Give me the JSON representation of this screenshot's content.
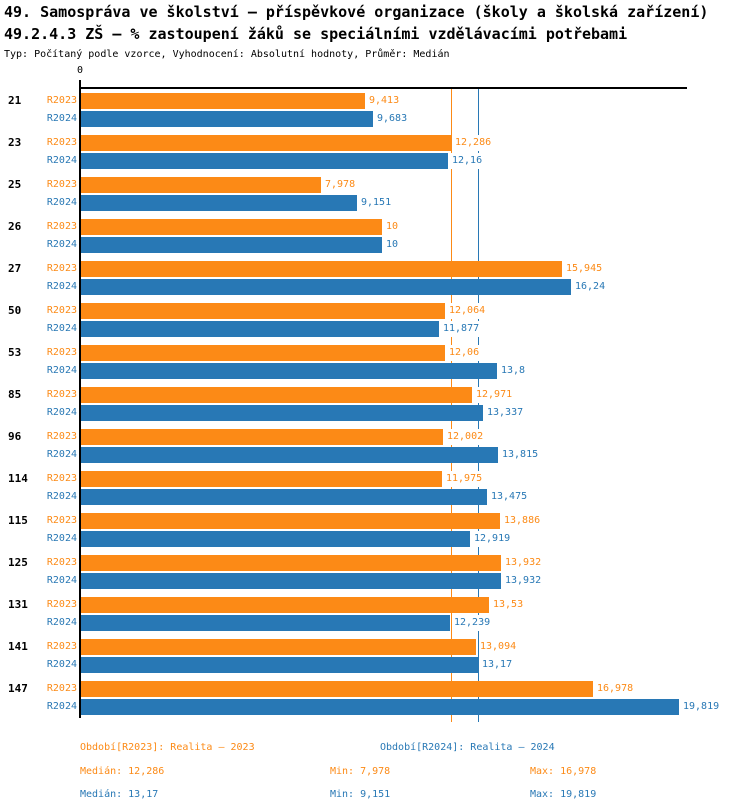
{
  "header": {
    "title1": "49. Samospráva ve školství – příspěvkové organizace (školy a školská zařízení)",
    "title2": "49.2.4.3 ZŠ – % zastoupení žáků se speciálními vzdělávacími potřebami",
    "meta": "Typ: Počítaný podle vzorce, Vyhodnocení: Absolutní hodnoty, Průměr: Medián"
  },
  "chart_data": {
    "type": "bar",
    "orientation": "horizontal",
    "x_axis_zero_label": "0",
    "xlim": [
      0,
      20.05
    ],
    "grid": false,
    "categories": [
      "21",
      "23",
      "25",
      "26",
      "27",
      "50",
      "53",
      "85",
      "96",
      "114",
      "115",
      "125",
      "131",
      "141",
      "147"
    ],
    "series": [
      {
        "name": "R2023",
        "color": "#FC8A16",
        "values": [
          9.413,
          12.286,
          7.978,
          10,
          15.945,
          12.064,
          12.06,
          12.971,
          12.002,
          11.975,
          13.886,
          13.932,
          13.53,
          13.094,
          16.978
        ],
        "labels": [
          "9,413",
          "12,286",
          "7,978",
          "10",
          "15,945",
          "12,064",
          "12,06",
          "12,971",
          "12,002",
          "11,975",
          "13,886",
          "13,932",
          "13,53",
          "13,094",
          "16,978"
        ],
        "median": 12.286
      },
      {
        "name": "R2024",
        "color": "#2878B5",
        "values": [
          9.683,
          12.16,
          9.151,
          10,
          16.24,
          11.877,
          13.8,
          13.337,
          13.815,
          13.475,
          12.919,
          13.932,
          12.239,
          13.17,
          19.819
        ],
        "labels": [
          "9,683",
          "12,16",
          "9,151",
          "10",
          "16,24",
          "11,877",
          "13,8",
          "13,337",
          "13,815",
          "13,475",
          "12,919",
          "13,932",
          "12,239",
          "13,17",
          "19,819"
        ],
        "median": 13.17
      }
    ],
    "legend": [
      "Období[R2023]: Realita – 2023",
      "Období[R2024]: Realita – 2024"
    ],
    "legend_position": "bottom",
    "stats": [
      {
        "median": "Medián: 12,286",
        "min": "Min: 7,978",
        "max": "Max: 16,978"
      },
      {
        "median": "Medián: 13,17",
        "min": "Min: 9,151",
        "max": "Max: 19,819"
      }
    ]
  },
  "colors": {
    "r2023": "#FC8A16",
    "r2024": "#2878B5",
    "axis": "#000000",
    "background": "#FFFFFF"
  }
}
